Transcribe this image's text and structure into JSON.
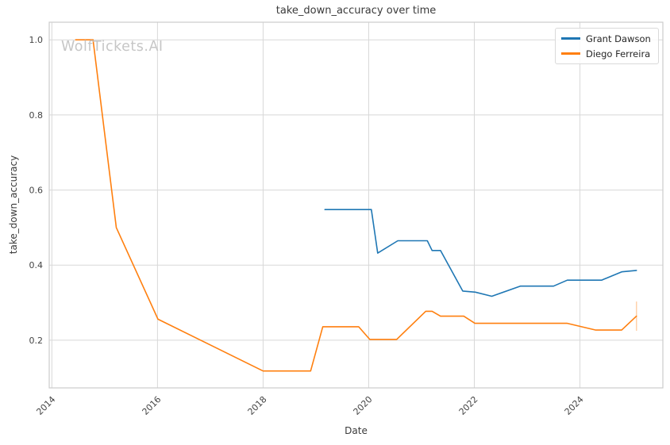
{
  "watermark": "WolfTickets.AI",
  "colors": {
    "background": "#ffffff",
    "grid": "#d8d8d8",
    "spine": "#cccccc",
    "tick_text": "#444444",
    "title_text": "#3a3a3a",
    "watermark_text": "#c6c6c6",
    "series1": "#1f77b4",
    "series2": "#ff7f0e"
  },
  "legend": {
    "position": "upper right",
    "entries": [
      "Grant Dawson",
      "Diego Ferreira"
    ]
  },
  "chart_data": {
    "type": "line",
    "title": "take_down_accuracy over time",
    "xlabel": "Date",
    "ylabel": "take_down_accuracy",
    "xlim": [
      2013.95,
      2025.57
    ],
    "ylim": [
      0.073,
      1.047
    ],
    "grid": true,
    "legend_position": "upper right",
    "x_ticks": [
      {
        "v": 2014,
        "label": "2014"
      },
      {
        "v": 2016,
        "label": "2016"
      },
      {
        "v": 2018,
        "label": "2018"
      },
      {
        "v": 2020,
        "label": "2020"
      },
      {
        "v": 2022,
        "label": "2022"
      },
      {
        "v": 2024,
        "label": "2024"
      }
    ],
    "y_ticks": [
      {
        "v": 0.2,
        "label": "0.2"
      },
      {
        "v": 0.4,
        "label": "0.4"
      },
      {
        "v": 0.6,
        "label": "0.6"
      },
      {
        "v": 0.8,
        "label": "0.8"
      },
      {
        "v": 1.0,
        "label": "1.0"
      }
    ],
    "series": [
      {
        "name": "Grant Dawson",
        "color": "#1f77b4",
        "x": [
          2019.17,
          2020.05,
          2020.17,
          2020.55,
          2021.11,
          2021.2,
          2021.36,
          2021.78,
          2022.02,
          2022.33,
          2022.87,
          2023.5,
          2023.76,
          2024.41,
          2024.79,
          2025.07
        ],
        "y": [
          0.548,
          0.548,
          0.432,
          0.465,
          0.465,
          0.439,
          0.439,
          0.331,
          0.328,
          0.317,
          0.344,
          0.344,
          0.36,
          0.36,
          0.382,
          0.386
        ],
        "error_bars": []
      },
      {
        "name": "Diego Ferreira",
        "color": "#ff7f0e",
        "x": [
          2014.45,
          2014.78,
          2015.22,
          2016.01,
          2018.0,
          2018.9,
          2019.13,
          2019.81,
          2020.02,
          2020.53,
          2021.08,
          2021.2,
          2021.36,
          2021.8,
          2022.01,
          2023.76,
          2024.3,
          2024.79,
          2025.07
        ],
        "y": [
          1.0,
          1.0,
          0.5,
          0.256,
          0.118,
          0.118,
          0.236,
          0.236,
          0.202,
          0.202,
          0.277,
          0.277,
          0.264,
          0.264,
          0.245,
          0.245,
          0.227,
          0.227,
          0.264
        ],
        "error_bars": [
          {
            "x": 2025.07,
            "low": 0.225,
            "high": 0.303
          }
        ]
      }
    ]
  }
}
